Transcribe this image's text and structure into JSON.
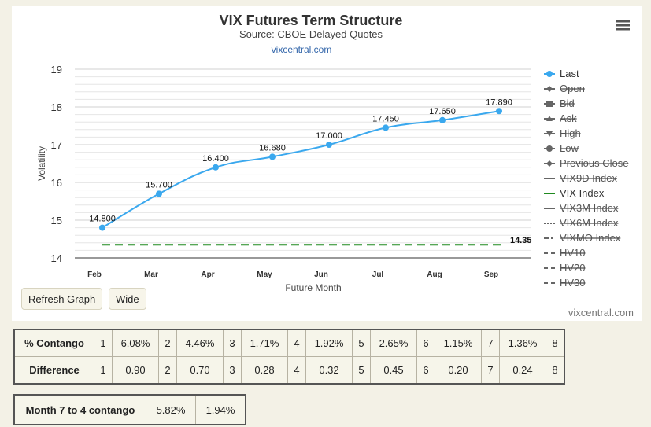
{
  "chart_data": {
    "type": "line",
    "title": "VIX Futures Term Structure",
    "subtitle": "Source: CBOE Delayed Quotes",
    "link": "vixcentral.com",
    "credit": "vixcentral.com",
    "xlabel": "Future Month",
    "ylabel": "Volatility",
    "ylim": [
      14,
      19
    ],
    "yticks": [
      14,
      15,
      16,
      17,
      18,
      19
    ],
    "categories": [
      "Feb",
      "Mar",
      "Apr",
      "May",
      "Jun",
      "Jul",
      "Aug",
      "Sep"
    ],
    "series": [
      {
        "name": "Last",
        "values": [
          14.8,
          15.7,
          16.4,
          16.68,
          17.0,
          17.45,
          17.65,
          17.89
        ],
        "labels": [
          "14.800",
          "15.700",
          "16.400",
          "16.680",
          "17.000",
          "17.450",
          "17.650",
          "17.890"
        ],
        "color": "#3aa8ee"
      },
      {
        "name": "VIX Index",
        "value": 14.35,
        "label": "14.35",
        "color": "#1f8a1f"
      }
    ],
    "grid": true,
    "legend_position": "right"
  },
  "legend": [
    {
      "label": "Last",
      "symbol": "circle",
      "line": "solid",
      "color": "#3aa8ee",
      "active": true
    },
    {
      "label": "Open",
      "symbol": "diamond",
      "line": "solid",
      "color": "#666666",
      "active": false
    },
    {
      "label": "Bid",
      "symbol": "square",
      "line": "solid",
      "color": "#666666",
      "active": false
    },
    {
      "label": "Ask",
      "symbol": "triangle",
      "line": "solid",
      "color": "#666666",
      "active": false
    },
    {
      "label": "High",
      "symbol": "triangle-down",
      "line": "solid",
      "color": "#666666",
      "active": false
    },
    {
      "label": "Low",
      "symbol": "circle",
      "line": "solid",
      "color": "#666666",
      "active": false
    },
    {
      "label": "Previous Close",
      "symbol": "diamond",
      "line": "solid",
      "color": "#666666",
      "active": false
    },
    {
      "label": "VIX9D Index",
      "symbol": "none",
      "line": "solid",
      "color": "#666666",
      "active": false
    },
    {
      "label": "VIX Index",
      "symbol": "none",
      "line": "solid",
      "color": "#1f8a1f",
      "active": true
    },
    {
      "label": "VIX3M Index",
      "symbol": "none",
      "line": "solid",
      "color": "#666666",
      "active": false
    },
    {
      "label": "VIX6M Index",
      "symbol": "none",
      "line": "dotted",
      "color": "#666666",
      "active": false
    },
    {
      "label": "VIXMO Index",
      "symbol": "none",
      "line": "dashdot",
      "color": "#666666",
      "active": false
    },
    {
      "label": "HV10",
      "symbol": "none",
      "line": "dashed",
      "color": "#666666",
      "active": false
    },
    {
      "label": "HV20",
      "symbol": "none",
      "line": "dashed",
      "color": "#666666",
      "active": false
    },
    {
      "label": "HV30",
      "symbol": "none",
      "line": "dashed",
      "color": "#666666",
      "active": false
    }
  ],
  "buttons": {
    "refresh": "Refresh Graph",
    "wide": "Wide"
  },
  "contango_table": {
    "rows": [
      {
        "label": "% Contango",
        "cells": [
          {
            "i": "1",
            "v": "6.08%"
          },
          {
            "i": "2",
            "v": "4.46%"
          },
          {
            "i": "3",
            "v": "1.71%"
          },
          {
            "i": "4",
            "v": "1.92%"
          },
          {
            "i": "5",
            "v": "2.65%"
          },
          {
            "i": "6",
            "v": "1.15%"
          },
          {
            "i": "7",
            "v": "1.36%"
          }
        ],
        "last": "8"
      },
      {
        "label": "Difference",
        "cells": [
          {
            "i": "1",
            "v": "0.90"
          },
          {
            "i": "2",
            "v": "0.70"
          },
          {
            "i": "3",
            "v": "0.28"
          },
          {
            "i": "4",
            "v": "0.32"
          },
          {
            "i": "5",
            "v": "0.45"
          },
          {
            "i": "6",
            "v": "0.20"
          },
          {
            "i": "7",
            "v": "0.24"
          }
        ],
        "last": "8"
      }
    ]
  },
  "summary": {
    "label": "Month 7 to 4 contango",
    "v1": "5.82%",
    "v2": "1.94%"
  }
}
